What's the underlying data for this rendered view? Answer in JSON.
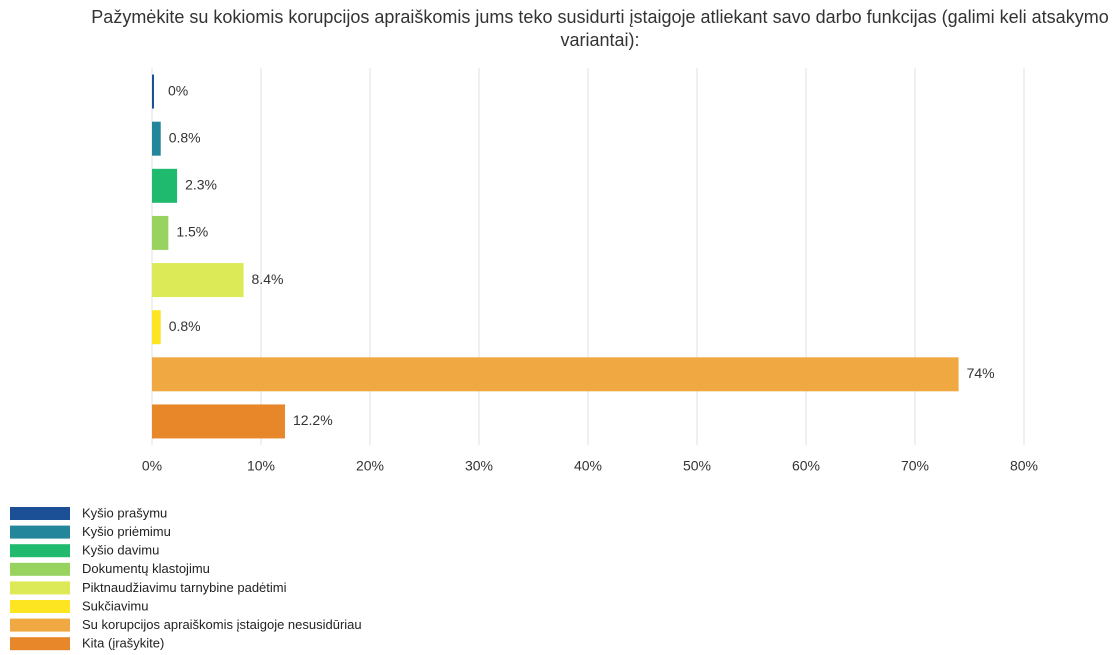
{
  "chart_data": {
    "type": "bar",
    "orientation": "horizontal",
    "title": "Pažymėkite su kokiomis korupcijos apraiškomis jums teko susidurti įstaigoje atliekant savo darbo funkcijas (galimi keli atsakymo variantai):",
    "categories": [
      "Kyšio prašymu",
      "Kyšio priėmimu",
      "Kyšio davimu",
      "Dokumentų klastojimu",
      "Piktnaudžiavimu tarnybine padėtimi",
      "Sukčiavimu",
      "Su korupcijos apraiškomis įstaigoje nesusidūriau",
      "Kita (įrašykite)"
    ],
    "values": [
      0,
      0.8,
      2.3,
      1.5,
      8.4,
      0.8,
      74,
      12.2
    ],
    "value_labels": [
      "0%",
      "0.8%",
      "2.3%",
      "1.5%",
      "8.4%",
      "0.8%",
      "74%",
      "12.2%"
    ],
    "colors": [
      "#1b4f96",
      "#24869b",
      "#20ba6f",
      "#98d35f",
      "#dcea57",
      "#fde522",
      "#f0a942",
      "#e8872a"
    ],
    "xlim": [
      0,
      80
    ],
    "xticks": [
      {
        "value": 0,
        "label": "0%"
      },
      {
        "value": 10,
        "label": "10%"
      },
      {
        "value": 20,
        "label": "20%"
      },
      {
        "value": 30,
        "label": "30%"
      },
      {
        "value": 40,
        "label": "40%"
      },
      {
        "value": 50,
        "label": "50%"
      },
      {
        "value": 60,
        "label": "60%"
      },
      {
        "value": 70,
        "label": "70%"
      },
      {
        "value": 80,
        "label": "80%"
      }
    ],
    "grid": true,
    "legend": "bottom-left"
  }
}
